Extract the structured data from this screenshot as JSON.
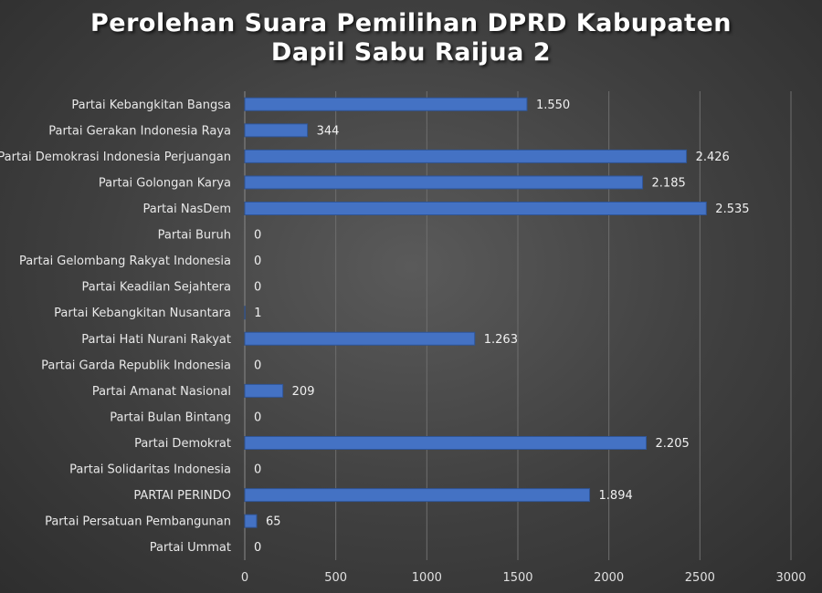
{
  "chart_data": {
    "type": "bar",
    "orientation": "horizontal",
    "title_line1": "Perolehan Suara Pemilihan DPRD Kabupaten",
    "title_line2": "Dapil Sabu Raijua 2",
    "xlabel": "",
    "ylabel": "",
    "xlim": [
      0,
      3000
    ],
    "xticks": [
      0,
      500,
      1000,
      1500,
      2000,
      2500,
      3000
    ],
    "grid": true,
    "legend": "none",
    "bar_color": "#4472c4",
    "categories": [
      "Partai Kebangkitan Bangsa",
      "Partai Gerakan Indonesia Raya",
      "Partai Demokrasi Indonesia Perjuangan",
      "Partai Golongan Karya",
      "Partai NasDem",
      "Partai Buruh",
      "Partai Gelombang Rakyat Indonesia",
      "Partai Keadilan Sejahtera",
      "Partai Kebangkitan Nusantara",
      "Partai Hati Nurani Rakyat",
      "Partai Garda Republik Indonesia",
      "Partai Amanat Nasional",
      "Partai Bulan Bintang",
      "Partai Demokrat",
      "Partai Solidaritas Indonesia",
      "PARTAI PERINDO",
      "Partai Persatuan Pembangunan",
      "Partai Ummat"
    ],
    "values": [
      1550,
      344,
      2426,
      2185,
      2535,
      0,
      0,
      0,
      1,
      1263,
      0,
      209,
      0,
      2205,
      0,
      1894,
      65,
      0
    ],
    "value_labels": [
      "1.550",
      "344",
      "2.426",
      "2.185",
      "2.535",
      "0",
      "0",
      "0",
      "1",
      "1.263",
      "0",
      "209",
      "0",
      "2.205",
      "0",
      "1.894",
      "65",
      "0"
    ]
  }
}
